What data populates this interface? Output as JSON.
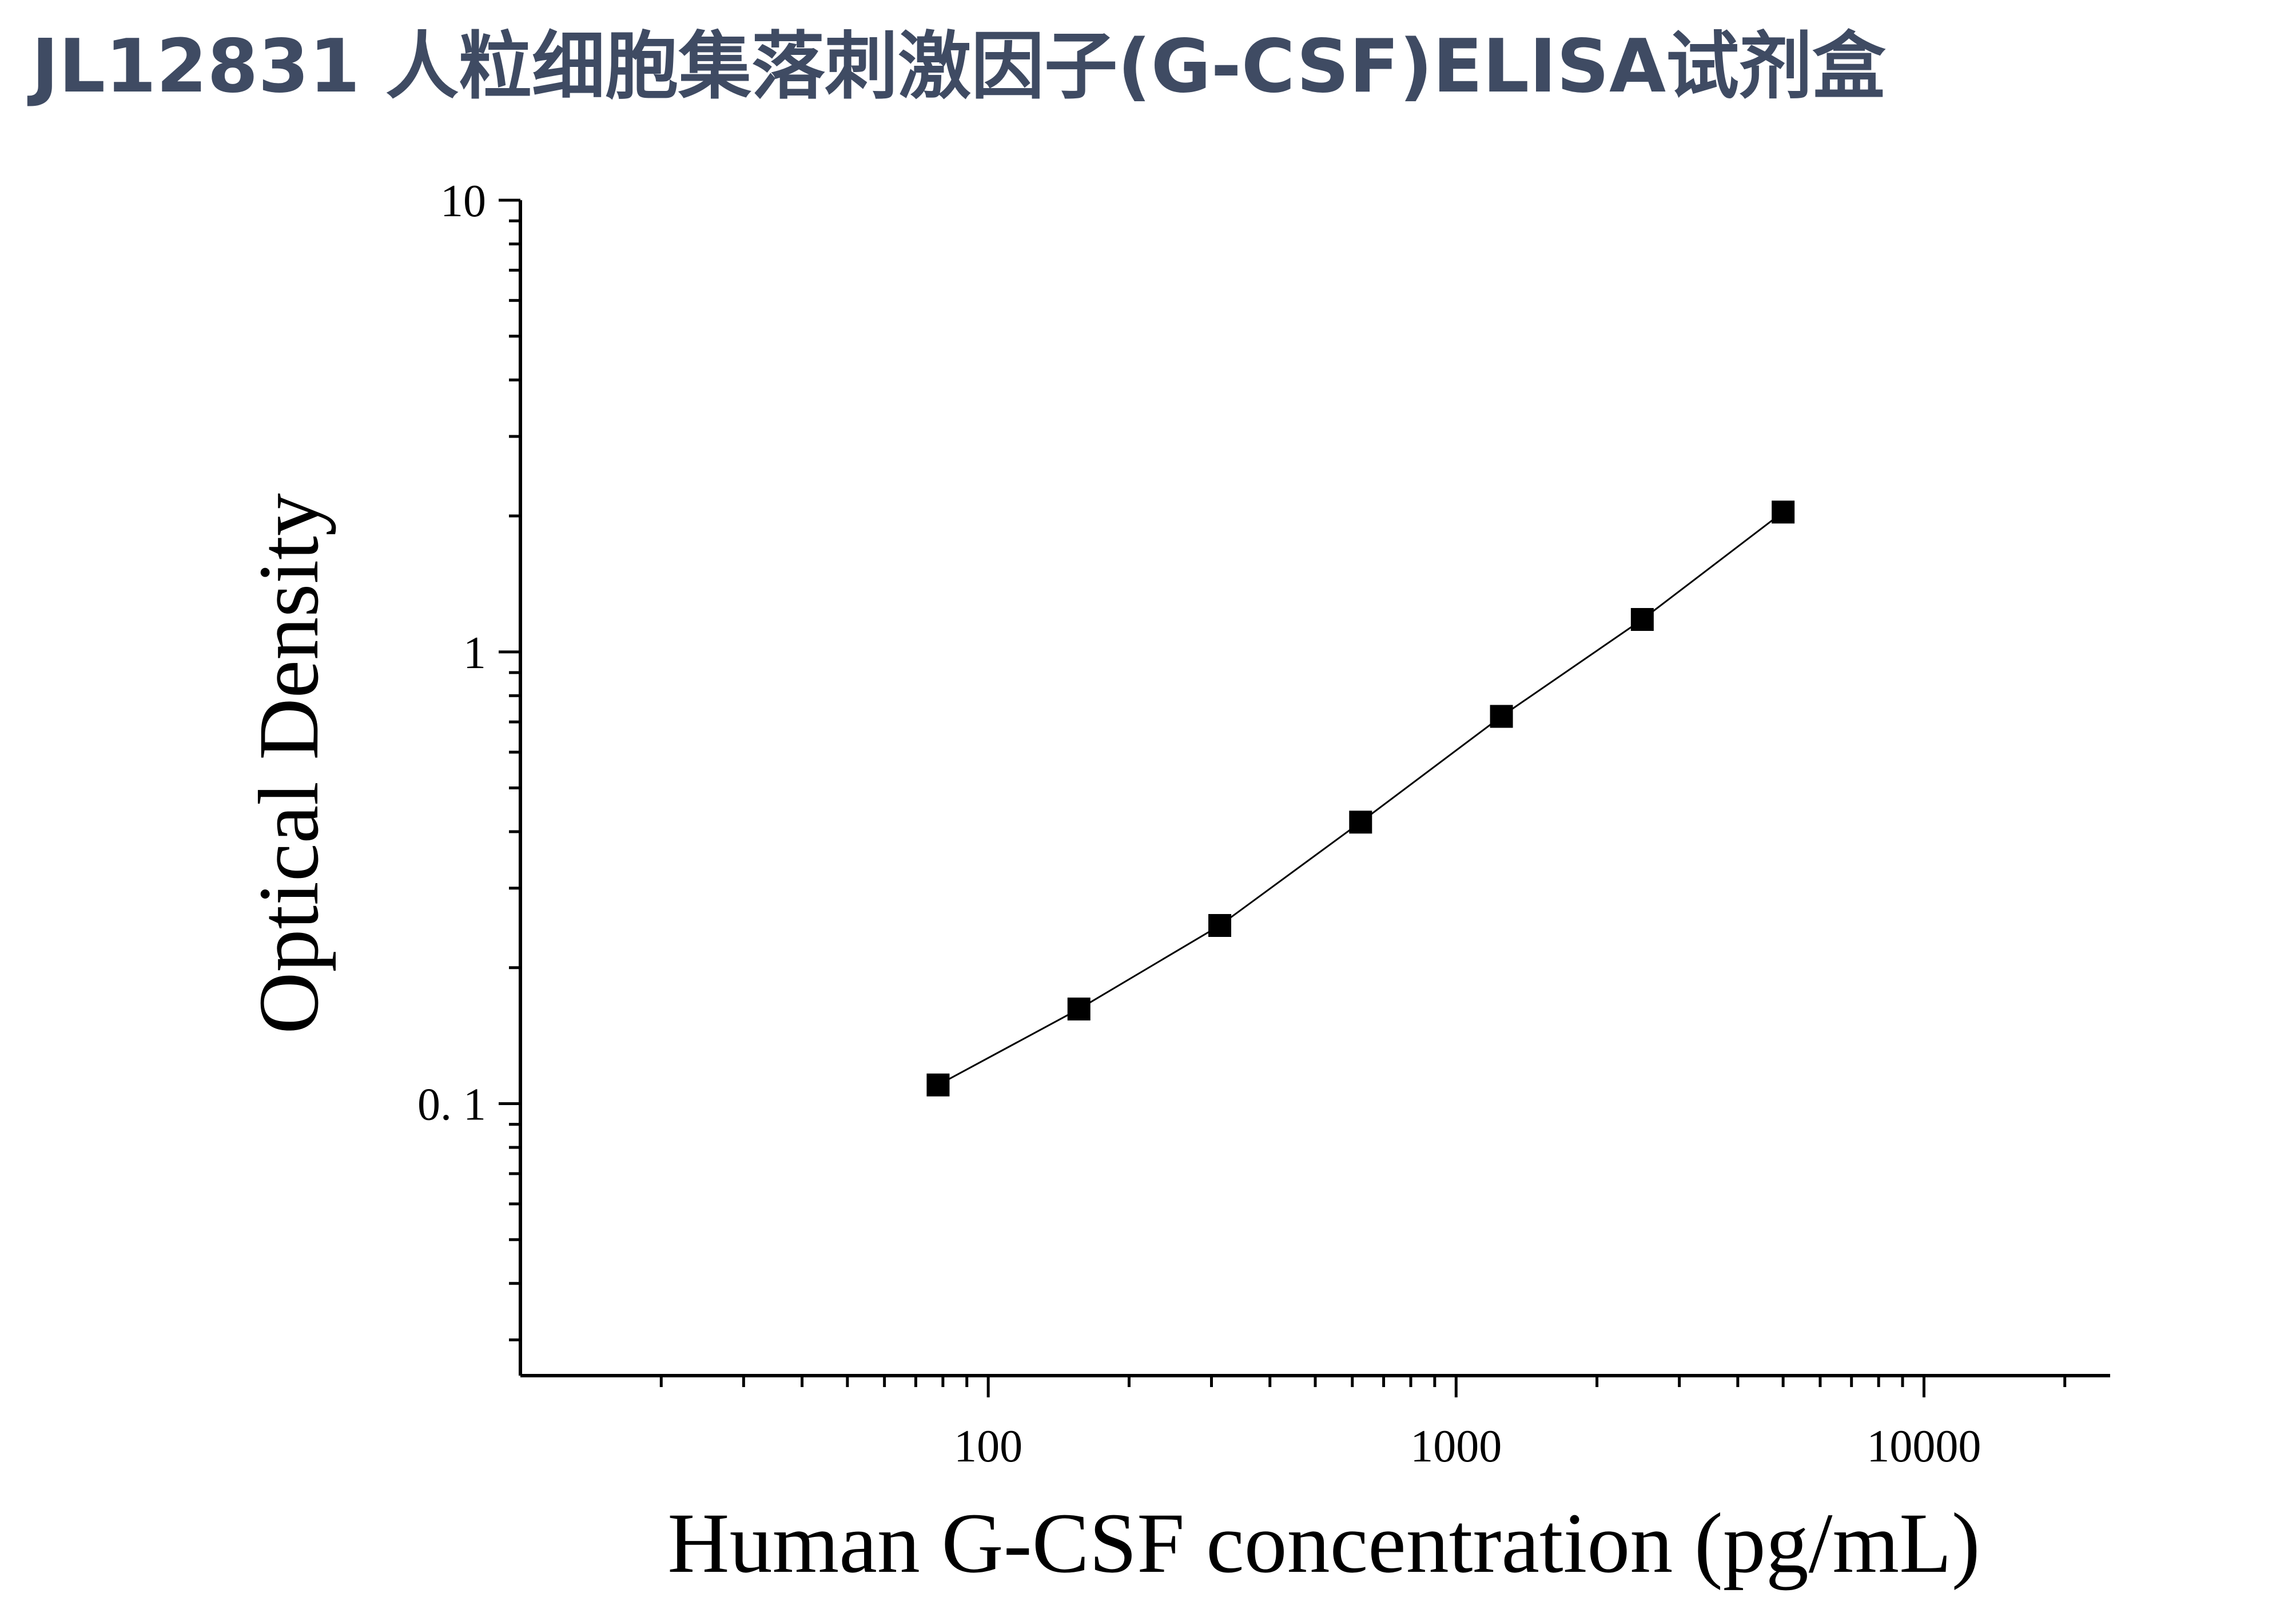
{
  "title": "JL12831 人粒细胞集落刺激因子(G-CSF)ELISA试剂盒",
  "chart_data": {
    "type": "line",
    "title": "JL12831 人粒细胞集落刺激因子(G-CSF)ELISA试剂盒",
    "xlabel": "Human G-CSF concentration (pg/mL)",
    "ylabel": "Optical Density",
    "x_scale": "log",
    "y_scale": "log",
    "xlim": [
      10,
      25000
    ],
    "ylim": [
      0.025,
      10
    ],
    "x_ticks": [
      {
        "value": 100,
        "label": "100"
      },
      {
        "value": 1000,
        "label": "1000"
      },
      {
        "value": 10000,
        "label": "10000"
      }
    ],
    "y_ticks": [
      {
        "value": 10,
        "label": "10"
      },
      {
        "value": 1,
        "label": "1"
      },
      {
        "value": 0.1,
        "label": "0. 1"
      }
    ],
    "grid": false,
    "legend": "none",
    "marker": "square",
    "line_color": "#000000",
    "marker_color": "#000000",
    "series": [
      {
        "x": [
          78.125,
          156.25,
          312.5,
          625,
          1250,
          2500,
          5000
        ],
        "y": [
          0.11,
          0.162,
          0.248,
          0.42,
          0.72,
          1.18,
          2.04
        ]
      }
    ]
  }
}
